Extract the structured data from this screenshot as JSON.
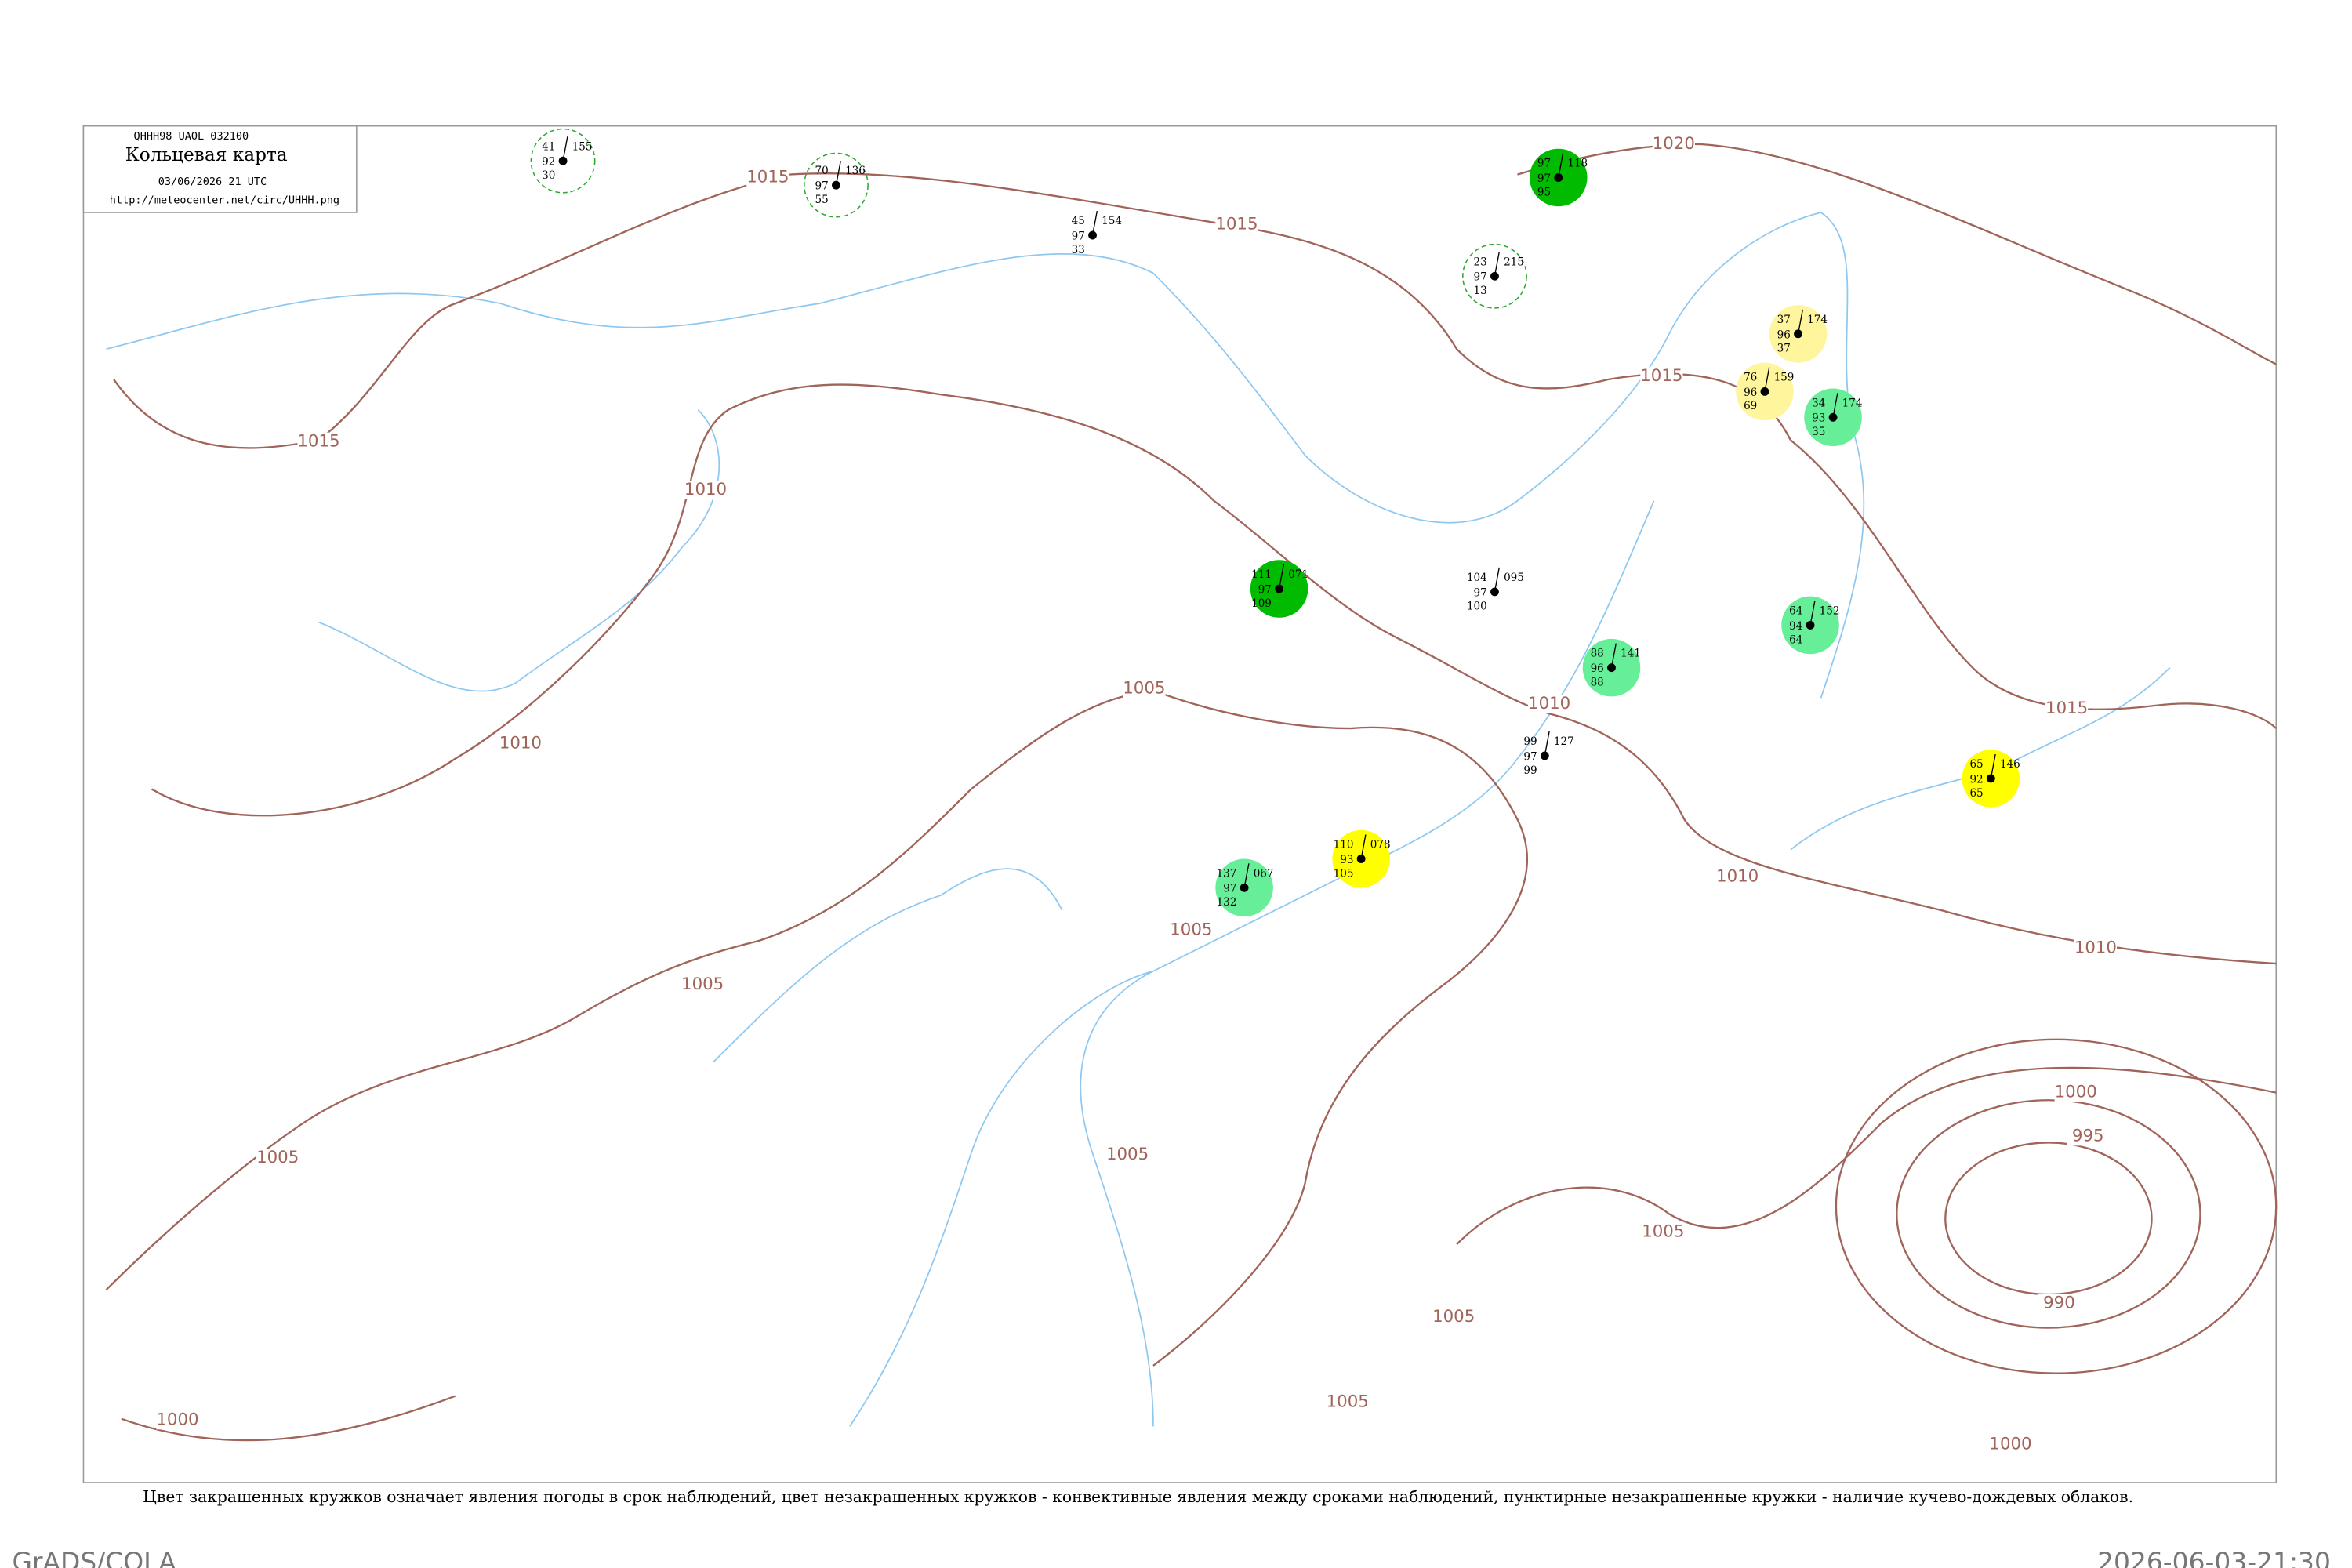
{
  "header": {
    "code": "QHHH98  UAOL  032100",
    "title": "Кольцевая карта",
    "datetime": "03/06/2026 21 UTC",
    "url": "http://meteocenter.net/circ/UHHH.png"
  },
  "isobar_labels": [
    "1020",
    "1015",
    "1015",
    "1015",
    "1015",
    "1015",
    "1010",
    "1010",
    "1010",
    "1010",
    "1010",
    "1005",
    "1005",
    "1005",
    "1005",
    "1005",
    "1005",
    "1005",
    "1005",
    "1000",
    "995",
    "990",
    "1000",
    "1000"
  ],
  "stations": [
    {
      "t": "41",
      "p": "155",
      "m": "92",
      "d": "30",
      "ring": "dashed"
    },
    {
      "t": "70",
      "p": "136",
      "m": "97",
      "d": "55",
      "ring": "dashed"
    },
    {
      "t": "45",
      "p": "154",
      "m": "97",
      "d": "33"
    },
    {
      "t": "23",
      "p": "215",
      "m": "97",
      "d": "13",
      "ring": "dashed"
    },
    {
      "t": "37",
      "p": "174",
      "m": "96",
      "d": "37",
      "color": "#fff59d"
    },
    {
      "t": "76",
      "p": "159",
      "m": "96",
      "d": "69",
      "color": "#fff59d"
    },
    {
      "t": "34",
      "p": "174",
      "m": "93",
      "d": "35",
      "color": "#66ee99"
    },
    {
      "t": "88",
      "p": "141",
      "m": "96",
      "d": "88",
      "color": "#66ee99"
    },
    {
      "t": "64",
      "p": "152",
      "m": "94",
      "d": "64",
      "color": "#66ee99"
    },
    {
      "t": "65",
      "p": "146",
      "m": "92",
      "d": "65",
      "color": "#ffff00"
    },
    {
      "t": "110",
      "p": "078",
      "m": "93",
      "d": "105",
      "color": "#ffff00"
    },
    {
      "t": "137",
      "p": "067",
      "m": "97",
      "d": "132",
      "color": "#66ee99"
    },
    {
      "t": "111",
      "p": "071",
      "m": "97",
      "d": "109",
      "color": "#00bb00"
    },
    {
      "t": "104",
      "p": "095",
      "m": "97",
      "d": "100"
    },
    {
      "t": "99",
      "p": "127",
      "m": "97",
      "d": "99"
    },
    {
      "t": "97",
      "p": "118",
      "m": "97",
      "d": "95",
      "color": "#00bb00"
    }
  ],
  "caption": "Цвет закрашенных кружков означает явления погоды в срок наблюдений, цвет незакрашенных кружков - конвективные явления между сроками наблюдений, пунктирные незакрашенные кружки - наличие кучево-дождевых облаков.",
  "footer": {
    "left": "GrADS/COLA",
    "right": "2026-06-03-21:30"
  }
}
